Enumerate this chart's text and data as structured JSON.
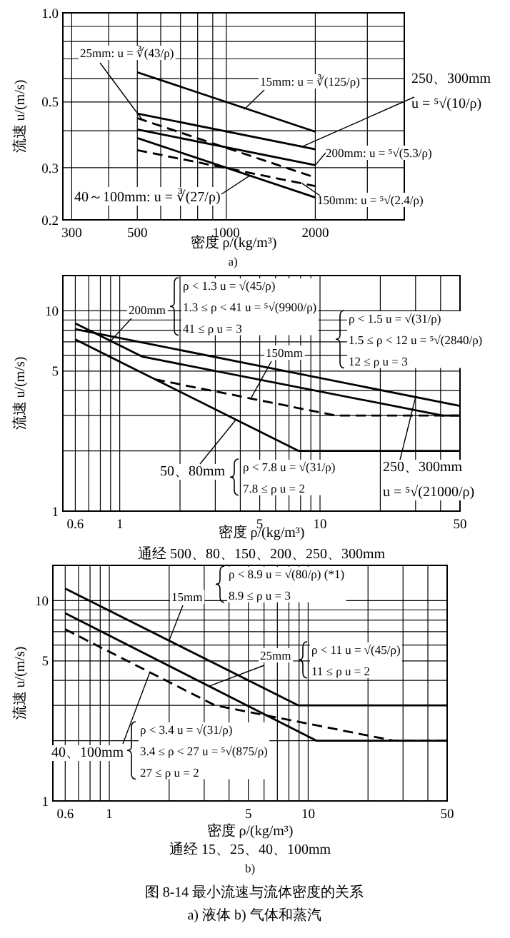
{
  "chart_data": [
    {
      "type": "line",
      "log": "xy",
      "grid": true,
      "xlabel": "密度 ρ/(kg/m³)",
      "ylabel": "流速 u/(m/s)",
      "xlim": [
        280,
        4000
      ],
      "ylim": [
        0.2,
        1.0
      ],
      "xticks": [
        300,
        {
          "value": 400,
          "label": null
        },
        500,
        {
          "value": 600,
          "label": null
        },
        {
          "value": 700,
          "label": null
        },
        {
          "value": 800,
          "label": null
        },
        {
          "value": 900,
          "label": null
        },
        1000,
        2000,
        {
          "value": 3000,
          "label": null
        }
      ],
      "yticks": [
        0.2,
        0.3,
        {
          "value": 0.4,
          "label": null
        },
        0.5,
        {
          "value": 0.6,
          "label": null
        },
        {
          "value": 0.7,
          "label": null
        },
        {
          "value": 0.8,
          "label": null
        },
        {
          "value": 0.9,
          "label": null
        },
        {
          "value": 1.0,
          "label": "1.0"
        }
      ],
      "series": [
        {
          "color": "#000000",
          "line_style": "solid",
          "x": [
            500,
            2000
          ],
          "values": [
            0.63,
            0.397
          ]
        },
        {
          "color": "#000000",
          "line_style": "solid",
          "x": [
            500,
            2000
          ],
          "values": [
            0.457,
            0.346
          ]
        },
        {
          "color": "#000000",
          "line_style": "dashed",
          "x": [
            500,
            2000
          ],
          "values": [
            0.441,
            0.278
          ]
        },
        {
          "color": "#000000",
          "line_style": "solid",
          "x": [
            500,
            2000
          ],
          "values": [
            0.404,
            0.306
          ]
        },
        {
          "color": "#000000",
          "line_style": "dashed",
          "x": [
            500,
            2000
          ],
          "values": [
            0.344,
            0.26
          ]
        },
        {
          "color": "#000000",
          "line_style": "solid",
          "x": [
            500,
            2000
          ],
          "values": [
            0.378,
            0.238
          ]
        }
      ],
      "annotations": [
        {
          "text": "25mm: u = ∛(43/ρ)",
          "x": 520,
          "y": 0.435
        },
        {
          "text": "15mm: u = ∛(125/ρ)",
          "x": 1150,
          "y": 0.472
        },
        {
          "text": "250、300mm\nu = ⁵√(10/ρ)",
          "x": 1800,
          "y": 0.353
        },
        {
          "text": "200mm: u = ⁵√(5.3/ρ)",
          "x": 2000,
          "y": 0.306
        },
        {
          "text": "150mm: u = ⁵√(2.4/ρ)",
          "x": 1800,
          "y": 0.266
        },
        {
          "text": "40～100mm: u = ∛(27/ρ)",
          "x": 1200,
          "y": 0.282
        },
        "a)"
      ]
    },
    {
      "type": "line",
      "log": "xy",
      "grid": true,
      "xlabel": "密度 ρ/(kg/m³)",
      "ylabel": "流速 u/(m/s)",
      "xlim": [
        0.52,
        50
      ],
      "ylim": [
        1,
        15
      ],
      "xticks": [
        0.6,
        {
          "value": 0.7,
          "label": null
        },
        {
          "value": 0.8,
          "label": null
        },
        {
          "value": 0.9,
          "label": null
        },
        1,
        {
          "value": 2,
          "label": null
        },
        {
          "value": 3,
          "label": null
        },
        {
          "value": 4,
          "label": null
        },
        5,
        {
          "value": 6,
          "label": null
        },
        {
          "value": 7,
          "label": null
        },
        {
          "value": 8,
          "label": null
        },
        {
          "value": 9,
          "label": null
        },
        10,
        {
          "value": 20,
          "label": null
        },
        {
          "value": 30,
          "label": null
        },
        {
          "value": 40,
          "label": null
        },
        50
      ],
      "yticks": [
        1,
        {
          "value": 2,
          "label": null
        },
        {
          "value": 3,
          "label": null
        },
        {
          "value": 4,
          "label": null
        },
        5,
        {
          "value": 6,
          "label": null
        },
        {
          "value": 7,
          "label": null
        },
        {
          "value": 8,
          "label": null
        },
        {
          "value": 9,
          "label": null
        },
        10
      ],
      "series": [
        {
          "color": "#000000",
          "line_style": "solid",
          "x": [
            0.6,
            50
          ],
          "values": [
            8.1,
            3.35
          ]
        },
        {
          "color": "#000000",
          "line_style": "solid",
          "x": [
            0.6,
            1.3,
            41,
            50
          ],
          "values": [
            8.66,
            5.9,
            3,
            3
          ]
        },
        {
          "color": "#000000",
          "line_style": "dashed",
          "x": [
            1.5,
            12,
            50
          ],
          "values": [
            4.55,
            3,
            3
          ]
        },
        {
          "color": "#000000",
          "line_style": "solid",
          "x": [
            0.6,
            7.8,
            50
          ],
          "values": [
            7.19,
            2,
            2
          ]
        }
      ],
      "annotations": [
        {
          "text": "200mm",
          "x": 0.9,
          "y": 7.07
        },
        "ρ < 1.3  u = √(45/ρ)\n1.3 ≤ ρ < 41  u = ⁵√(9900/ρ)\n41 ≤ ρ  u = 3",
        {
          "text": "150mm",
          "x": 4.5,
          "y": 3.63
        },
        "ρ < 1.5  u = √(31/ρ)\n1.5 ≤ ρ < 12  u = ⁵√(2840/ρ)\n12 ≤ ρ  u = 3",
        {
          "text": "50、80mm",
          "x": 3.8,
          "y": 2.86
        },
        "ρ < 7.8  u = √(31/ρ)\n7.8 ≤ ρ  u = 2",
        {
          "text": "250、300mm\nu = ⁵√(21000/ρ)",
          "x": 30,
          "y": 3.71
        },
        "通经  500、80、150、200、250、300mm"
      ]
    },
    {
      "type": "line",
      "log": "xy",
      "grid": true,
      "xlabel": "密度 ρ/(kg/m³)",
      "ylabel": "流速 u/(m/s)",
      "xlim": [
        0.52,
        50
      ],
      "ylim": [
        1,
        15
      ],
      "xticks": [
        0.6,
        {
          "value": 0.7,
          "label": null
        },
        {
          "value": 0.8,
          "label": null
        },
        {
          "value": 0.9,
          "label": null
        },
        1,
        {
          "value": 2,
          "label": null
        },
        {
          "value": 3,
          "label": null
        },
        {
          "value": 4,
          "label": null
        },
        5,
        {
          "value": 6,
          "label": null
        },
        {
          "value": 7,
          "label": null
        },
        {
          "value": 8,
          "label": null
        },
        {
          "value": 9,
          "label": null
        },
        10,
        {
          "value": 20,
          "label": null
        },
        {
          "value": 30,
          "label": null
        },
        {
          "value": 40,
          "label": null
        },
        50
      ],
      "yticks": [
        1,
        {
          "value": 2,
          "label": null
        },
        {
          "value": 3,
          "label": null
        },
        {
          "value": 4,
          "label": null
        },
        5,
        {
          "value": 6,
          "label": null
        },
        {
          "value": 7,
          "label": null
        },
        {
          "value": 8,
          "label": null
        },
        {
          "value": 9,
          "label": null
        },
        10
      ],
      "series": [
        {
          "color": "#000000",
          "line_style": "solid",
          "x": [
            0.6,
            8.9,
            50
          ],
          "values": [
            11.5,
            3,
            3
          ]
        },
        {
          "color": "#000000",
          "line_style": "solid",
          "x": [
            0.6,
            11,
            50
          ],
          "values": [
            8.66,
            2,
            2
          ]
        },
        {
          "color": "#000000",
          "line_style": "dashed",
          "x": [
            0.6,
            3.4,
            27,
            50
          ],
          "values": [
            7.19,
            3.0,
            2,
            2
          ]
        }
      ],
      "annotations": [
        {
          "text": "15mm",
          "x": 2,
          "y": 6.32
        },
        "ρ < 8.9  u = √(80/ρ)  (*1)\n8.9 ≤ ρ  u = 3",
        {
          "text": "25mm",
          "x": 3.2,
          "y": 3.75
        },
        "ρ < 11  u = √(45/ρ)\n11 ≤ ρ  u = 2",
        {
          "text": "40、100mm",
          "x": 1.6,
          "y": 4.4
        },
        "ρ < 3.4  u = √(31/ρ)\n3.4 ≤ ρ < 27  u = ⁵√(875/ρ)\n27 ≤ ρ  u = 2",
        "通经  15、25、40、100mm",
        "b)",
        "图 8-14   最小流速与流体密度的关系",
        "a) 液体   b) 气体和蒸汽"
      ]
    }
  ]
}
